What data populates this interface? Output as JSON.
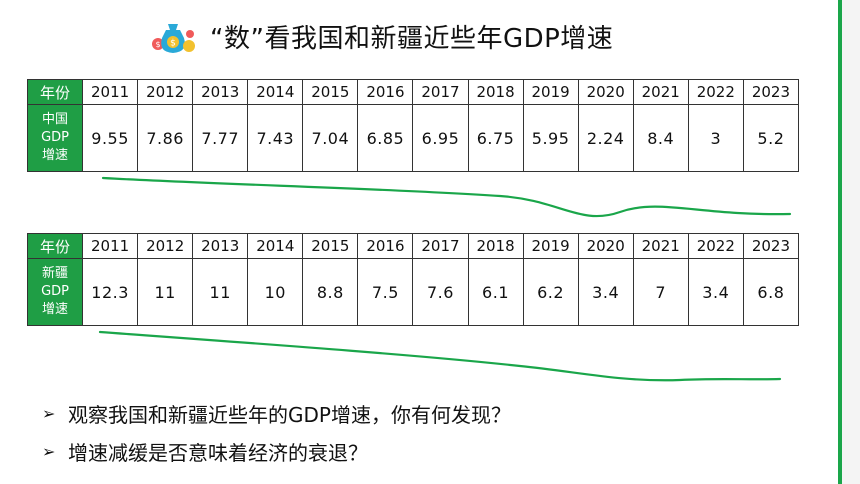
{
  "title": "“数”看我国和新疆近些年GDP增速",
  "tables": [
    {
      "year_label": "年份",
      "row_label_lines": [
        "中国",
        "GDP",
        "增速"
      ],
      "years": [
        "2011",
        "2012",
        "2013",
        "2014",
        "2015",
        "2016",
        "2017",
        "2018",
        "2019",
        "2020",
        "2021",
        "2022",
        "2023"
      ],
      "values": [
        "9.55",
        "7.86",
        "7.77",
        "7.43",
        "7.04",
        "6.85",
        "6.95",
        "6.75",
        "5.95",
        "2.24",
        "8.4",
        "3",
        "5.2"
      ]
    },
    {
      "year_label": "年份",
      "row_label_lines": [
        "新疆",
        "GDP",
        "增速"
      ],
      "years": [
        "2011",
        "2012",
        "2013",
        "2014",
        "2015",
        "2016",
        "2017",
        "2018",
        "2019",
        "2020",
        "2021",
        "2022",
        "2023"
      ],
      "values": [
        "12.3",
        "11",
        "11",
        "10",
        "8.8",
        "7.5",
        "7.6",
        "6.1",
        "6.2",
        "3.4",
        "7",
        "3.4",
        "6.8"
      ]
    }
  ],
  "bullets": [
    "观察我国和新疆近些年的GDP增速，你有何发现？",
    "增速减缓是否意味着经济的衰退？"
  ],
  "colors": {
    "accent": "#1f9e45",
    "squiggle": "#1aa64a"
  },
  "icons": {
    "title": "money-bag-icon",
    "bullet": "arrowhead-icon"
  }
}
